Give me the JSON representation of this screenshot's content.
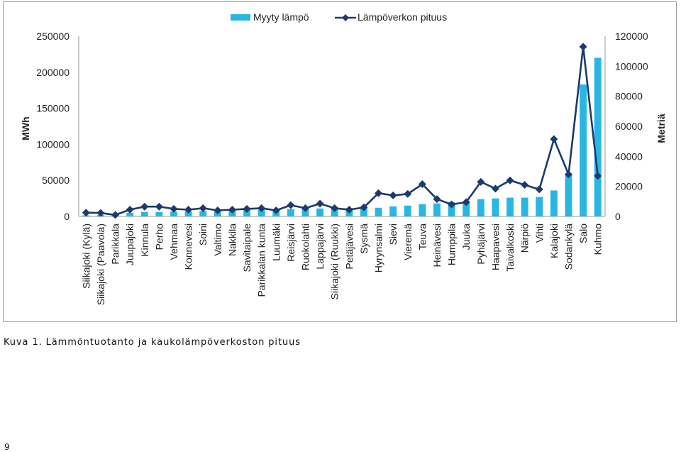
{
  "caption": "Kuva 1. Lämmöntuotanto ja kaukolämpöverkoston pituus",
  "page_number": "9",
  "colors": {
    "bar": "#29b6e3",
    "line": "#1c3a6b",
    "grid": "#d0d0d0",
    "frame": "#9a9a9a",
    "text": "#222222"
  },
  "chart_data": {
    "type": "bar",
    "title": "",
    "ylabel": "MWh",
    "y2label": "Metriä",
    "ylim": [
      0,
      250000
    ],
    "y2lim": [
      0,
      120000
    ],
    "yticks": [
      "0",
      "50000",
      "100000",
      "150000",
      "200000",
      "250000"
    ],
    "y2ticks": [
      "0",
      "20000",
      "40000",
      "60000",
      "80000",
      "100000",
      "120000"
    ],
    "grid": false,
    "legend_position": "top-center",
    "categories": [
      "Siikajoki (Kylä)",
      "Siikajoki (Paavola)",
      "Parikkala",
      "Juupajoki",
      "Kinnula",
      "Perho",
      "Vehmaa",
      "Konnevesi",
      "Soini",
      "Valtimo",
      "Nakkila",
      "Savitaipale",
      "Parikkalan kunta",
      "Luumäki",
      "Reisjärvi",
      "Ruokolahti",
      "Lappajärvi",
      "Siikajoki (Ruukki)",
      "Petäjävesi",
      "Sysmä",
      "Hyrynsalmi",
      "Sievi",
      "Vieremä",
      "Teuva",
      "Heinävesi",
      "Humppila",
      "Juuka",
      "Pyhäjärvi",
      "Haapavesi",
      "Taivalkoski",
      "Närpiö",
      "Vihti",
      "Kalajoki",
      "Sodankylä",
      "Salo",
      "Kuhmo"
    ],
    "series": [
      {
        "name": "Myyty lämpö",
        "type": "bar",
        "axis": "left",
        "values": [
          1500,
          2000,
          3000,
          5000,
          6000,
          6000,
          6500,
          7000,
          7500,
          8000,
          8500,
          9000,
          9500,
          10000,
          10000,
          10500,
          11000,
          11000,
          11500,
          12000,
          12000,
          14000,
          15000,
          17000,
          18000,
          20000,
          21000,
          24000,
          25000,
          26000,
          26000,
          27000,
          36000,
          58000,
          183000,
          220000
        ]
      },
      {
        "name": "Lämpöverkon pituus",
        "type": "line",
        "axis": "right",
        "values": [
          2500,
          2300,
          1000,
          4500,
          6500,
          6500,
          5000,
          4500,
          5500,
          4000,
          4500,
          5000,
          5500,
          4000,
          7500,
          5500,
          8500,
          5500,
          4500,
          6000,
          15500,
          14000,
          15000,
          21500,
          11500,
          8000,
          9500,
          23000,
          18500,
          24000,
          21000,
          18000,
          51500,
          28000,
          113000,
          27000
        ]
      }
    ]
  }
}
